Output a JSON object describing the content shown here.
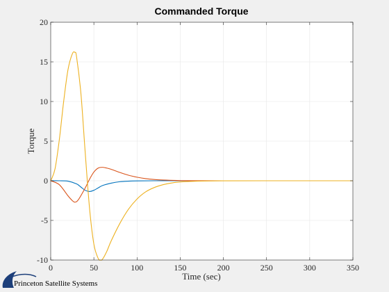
{
  "chart_data": {
    "type": "line",
    "title": "Commanded Torque",
    "xlabel": "Time (sec)",
    "ylabel": "Torque",
    "xlim": [
      0,
      350
    ],
    "ylim": [
      -10,
      20
    ],
    "xticks": [
      0,
      50,
      100,
      150,
      200,
      250,
      300,
      350
    ],
    "yticks": [
      -10,
      -5,
      0,
      5,
      10,
      15,
      20
    ],
    "grid": true,
    "series": [
      {
        "color": "#0072BD",
        "x": [
          0,
          10,
          20,
          30,
          35,
          40,
          45,
          50,
          55,
          60,
          70,
          80,
          90,
          100,
          120,
          150,
          200,
          350
        ],
        "y": [
          0,
          0,
          -0.05,
          -0.4,
          -0.8,
          -1.2,
          -1.35,
          -1.2,
          -0.9,
          -0.6,
          -0.3,
          -0.12,
          -0.05,
          -0.02,
          0,
          0,
          0,
          0
        ]
      },
      {
        "color": "#D95319",
        "x": [
          0,
          10,
          20,
          25,
          28,
          32,
          40,
          45,
          50,
          55,
          60,
          65,
          70,
          80,
          90,
          100,
          110,
          120,
          130,
          150,
          170,
          200,
          350
        ],
        "y": [
          0,
          -0.5,
          -1.9,
          -2.5,
          -2.7,
          -2.4,
          -0.9,
          0.2,
          1.1,
          1.6,
          1.7,
          1.6,
          1.45,
          1.05,
          0.7,
          0.45,
          0.27,
          0.16,
          0.09,
          0.03,
          0.01,
          0,
          0
        ]
      },
      {
        "color": "#EDB120",
        "x": [
          0,
          5,
          10,
          15,
          20,
          25,
          28,
          30,
          35,
          40,
          45,
          50,
          55,
          58,
          60,
          65,
          70,
          80,
          90,
          100,
          110,
          120,
          130,
          140,
          150,
          170,
          200,
          250,
          350
        ],
        "y": [
          0,
          1.5,
          5.2,
          10,
          14,
          16,
          16.2,
          15.6,
          11,
          3.5,
          -3.5,
          -8.0,
          -9.8,
          -10,
          -9.9,
          -8.9,
          -7.6,
          -5.4,
          -3.6,
          -2.3,
          -1.4,
          -0.85,
          -0.5,
          -0.28,
          -0.15,
          -0.05,
          -0.01,
          0,
          0
        ]
      }
    ]
  },
  "logo": {
    "text": "Princeton Satellite Systems"
  }
}
